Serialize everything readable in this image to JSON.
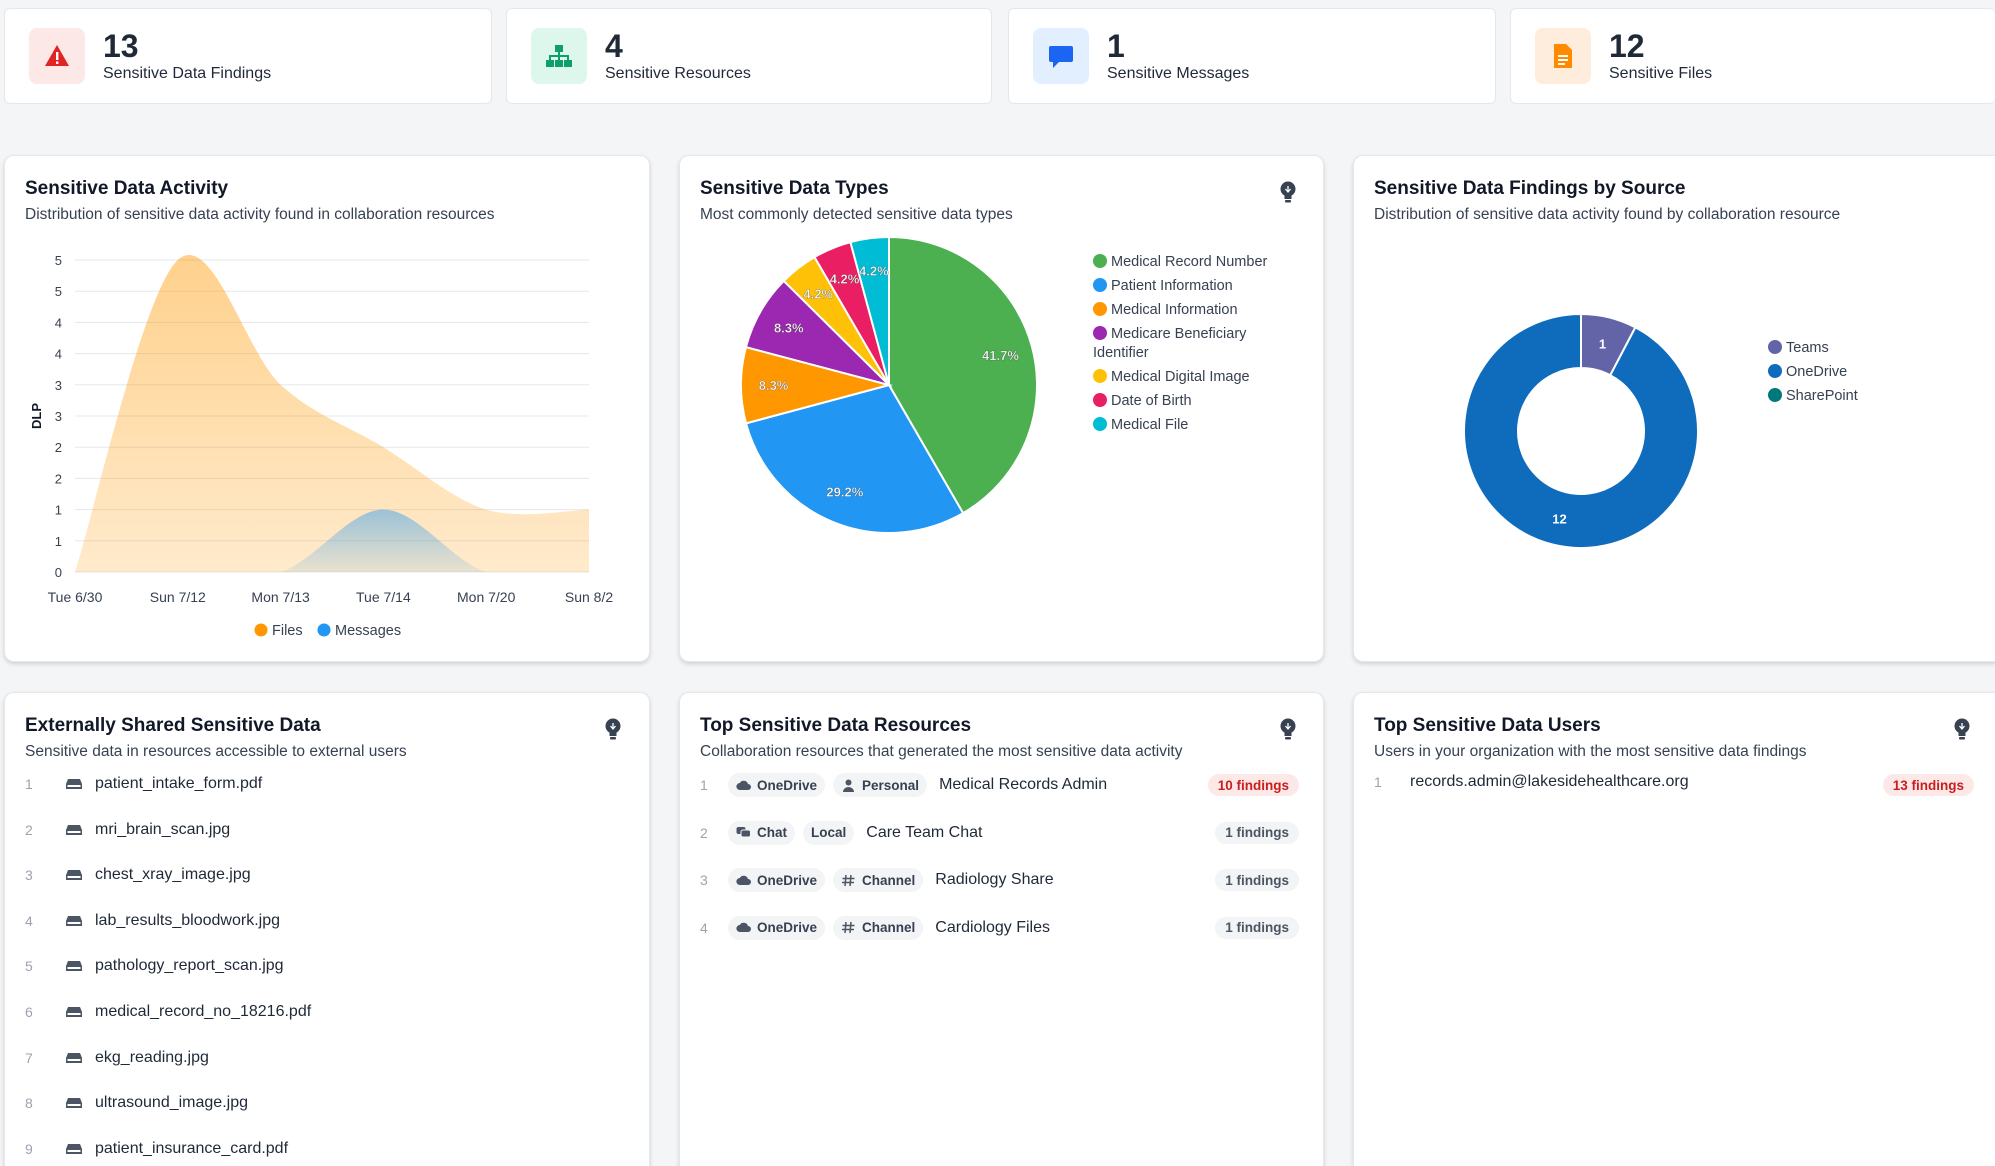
{
  "stats": [
    {
      "value": "13",
      "label": "Sensitive Data Findings",
      "icon": "warning-icon",
      "color": "#e02424",
      "bg": "#fde8e8"
    },
    {
      "value": "4",
      "label": "Sensitive Resources",
      "icon": "sitemap-icon",
      "color": "#0e9f6e",
      "bg": "#def7ec"
    },
    {
      "value": "1",
      "label": "Sensitive Messages",
      "icon": "message-icon",
      "color": "#1c64f2",
      "bg": "#e1effe"
    },
    {
      "value": "12",
      "label": "Sensitive Files",
      "icon": "file-icon",
      "color": "#ff8a00",
      "bg": "#feecdc"
    }
  ],
  "activity": {
    "title": "Sensitive Data Activity",
    "subtitle": "Distribution of sensitive data activity found in collaboration resources"
  },
  "types": {
    "title": "Sensitive Data Types",
    "subtitle": "Most commonly detected sensitive data types"
  },
  "sources": {
    "title": "Sensitive Data Findings by Source",
    "subtitle": "Distribution of sensitive data activity found by collaboration resource"
  },
  "chart_data": [
    {
      "type": "area",
      "ylabel": "DLP",
      "y_tick_labels": [
        "0",
        "1",
        "1",
        "2",
        "2",
        "3",
        "3",
        "4",
        "4",
        "5",
        "5"
      ],
      "x_tick_labels": [
        "Tue 6/30",
        "Sun 7/12",
        "Mon 7/13",
        "Tue 7/14",
        "Mon 7/20",
        "Sun 8/2"
      ],
      "ylim": [
        0,
        5
      ],
      "legend": "bottom",
      "series": [
        {
          "name": "Files",
          "color": "#ff9800",
          "values": [
            0,
            5,
            3,
            2,
            1,
            1
          ]
        },
        {
          "name": "Messages",
          "color": "#2196f3",
          "values": [
            0,
            0,
            0,
            1,
            0,
            0
          ]
        }
      ]
    },
    {
      "type": "pie",
      "legend": "right",
      "slices": [
        {
          "name": "Medical Record Number",
          "value": 41.7,
          "label": "41.7%",
          "color": "#4caf50"
        },
        {
          "name": "Patient Information",
          "value": 29.2,
          "label": "29.2%",
          "color": "#2196f3"
        },
        {
          "name": "Medical Information",
          "value": 8.3,
          "label": "8.3%",
          "color": "#ff9800"
        },
        {
          "name": "Medicare Beneficiary Identifier",
          "value": 8.3,
          "label": "8.3%",
          "color": "#9c27b0"
        },
        {
          "name": "Medical Digital Image",
          "value": 4.2,
          "label": "4.2%",
          "color": "#ffc107"
        },
        {
          "name": "Date of Birth",
          "value": 4.2,
          "label": "4.2%",
          "color": "#e91e63"
        },
        {
          "name": "Medical File",
          "value": 4.2,
          "label": "4.2%",
          "color": "#00bcd4"
        }
      ]
    },
    {
      "type": "pie",
      "legend": "right",
      "slices": [
        {
          "name": "Teams",
          "value": 1,
          "label": "1",
          "color": "#6264a7"
        },
        {
          "name": "OneDrive",
          "value": 12,
          "label": "12",
          "color": "#0f6cbd"
        },
        {
          "name": "SharePoint",
          "value": 0,
          "label": "",
          "color": "#03787c"
        }
      ]
    }
  ],
  "external": {
    "title": "Externally Shared Sensitive Data",
    "subtitle": "Sensitive data in resources accessible to external users",
    "items": [
      {
        "rank": "1",
        "name": "patient_intake_form.pdf"
      },
      {
        "rank": "2",
        "name": "mri_brain_scan.jpg"
      },
      {
        "rank": "3",
        "name": "chest_xray_image.jpg"
      },
      {
        "rank": "4",
        "name": "lab_results_bloodwork.jpg"
      },
      {
        "rank": "5",
        "name": "pathology_report_scan.jpg"
      },
      {
        "rank": "6",
        "name": "medical_record_no_18216.pdf"
      },
      {
        "rank": "7",
        "name": "ekg_reading.jpg"
      },
      {
        "rank": "8",
        "name": "ultrasound_image.jpg"
      },
      {
        "rank": "9",
        "name": "patient_insurance_card.pdf"
      }
    ]
  },
  "resources": {
    "title": "Top Sensitive Data Resources",
    "subtitle": "Collaboration resources that generated the most sensitive data activity",
    "items": [
      {
        "rank": "1",
        "source": "OneDrive",
        "source_icon": "cloud-icon",
        "scope": "Personal",
        "scope_icon": "person-icon",
        "name": "Medical Records Admin",
        "findings": "10 findings",
        "hot": true
      },
      {
        "rank": "2",
        "source": "Chat",
        "source_icon": "chat-icon",
        "scope": "Local",
        "scope_icon": "",
        "name": "Care Team Chat",
        "findings": "1 findings",
        "hot": false
      },
      {
        "rank": "3",
        "source": "OneDrive",
        "source_icon": "cloud-icon",
        "scope": "Channel",
        "scope_icon": "hash-icon",
        "name": "Radiology Share",
        "findings": "1 findings",
        "hot": false
      },
      {
        "rank": "4",
        "source": "OneDrive",
        "source_icon": "cloud-icon",
        "scope": "Channel",
        "scope_icon": "hash-icon",
        "name": "Cardiology Files",
        "findings": "1 findings",
        "hot": false
      }
    ]
  },
  "users": {
    "title": "Top Sensitive Data Users",
    "subtitle": "Users in your organization with the most sensitive data findings",
    "items": [
      {
        "rank": "1",
        "name": "records.admin@lakesidehealthcare.org",
        "findings": "13 findings"
      }
    ]
  }
}
